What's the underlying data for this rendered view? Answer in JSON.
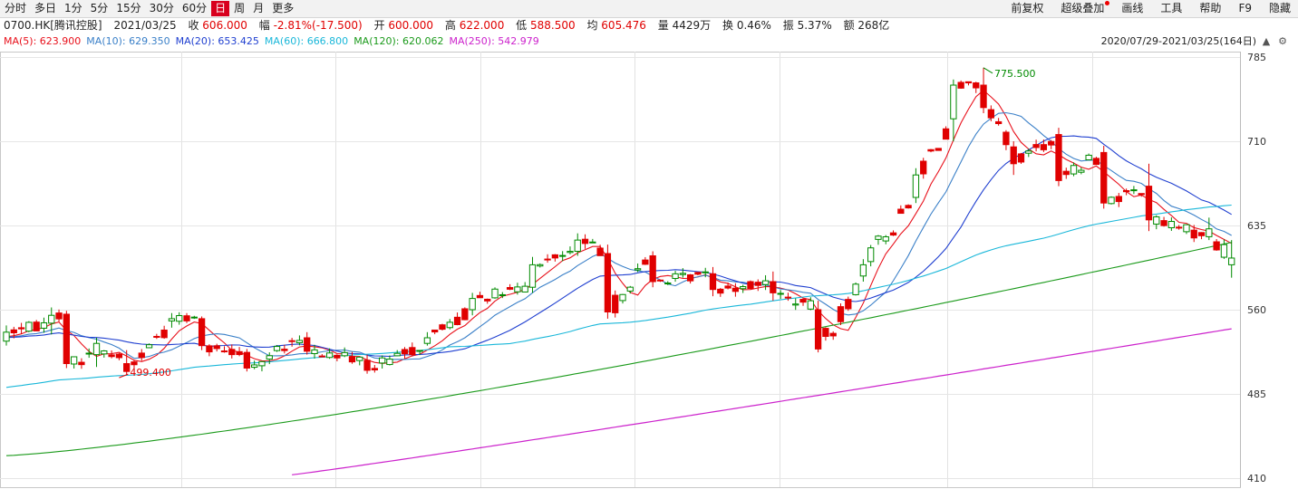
{
  "toolbar": {
    "period_tabs": [
      "分时",
      "多日",
      "1分",
      "5分",
      "15分",
      "30分",
      "60分",
      "日",
      "周",
      "月",
      "更多"
    ],
    "active_period": "日",
    "tools": [
      "前复权",
      "超级叠加",
      "画线",
      "工具",
      "帮助",
      "F9",
      "隐藏"
    ]
  },
  "info": {
    "symbol": "0700.HK[腾讯控股]",
    "date": "2021/03/25",
    "close_label": "收",
    "close": "606.000",
    "change_label": "幅",
    "change": "-2.81%(-17.500)",
    "open_label": "开",
    "open": "600.000",
    "high_label": "高",
    "high": "622.000",
    "low_label": "低",
    "low": "588.500",
    "avg_label": "均",
    "avg": "605.476",
    "volume_label": "量",
    "volume": "4429万",
    "turnover_label": "换",
    "turnover": "0.46%",
    "amplitude_label": "振",
    "amplitude": "5.37%",
    "amount_label": "额",
    "amount": "268亿"
  },
  "ma_legend": [
    {
      "label": "MA(5):",
      "value": "623.900",
      "color": "#e8101b"
    },
    {
      "label": "MA(10):",
      "value": "629.350",
      "color": "#3b80c8"
    },
    {
      "label": "MA(20):",
      "value": "653.425",
      "color": "#1f3fd0"
    },
    {
      "label": "MA(60):",
      "value": "666.800",
      "color": "#19b7d9"
    },
    {
      "label": "MA(120):",
      "value": "620.062",
      "color": "#1b9a1b"
    },
    {
      "label": "MA(250):",
      "value": "542.979",
      "color": "#cc22cc"
    }
  ],
  "range_label": "2020/07/29-2021/03/25(164日)",
  "icons": [
    "zoom-in-icon",
    "zoom-out-icon"
  ],
  "chart_data": {
    "type": "candlestick",
    "y_ticks": [
      410,
      485,
      560,
      635,
      710,
      785
    ],
    "ylim": [
      407,
      788
    ],
    "up_color": "#008a00",
    "down_color": "#e00000",
    "annotations": [
      {
        "text": "499.400",
        "value": 499.4,
        "candle": 15,
        "color": "#e00000"
      },
      {
        "text": "775.500",
        "value": 775.5,
        "candle": 130,
        "color": "#008a00"
      }
    ],
    "ohlc_sampled": [
      {
        "i": 0,
        "o": 532,
        "h": 546,
        "l": 528,
        "c": 540
      },
      {
        "i": 6,
        "o": 548,
        "h": 562,
        "l": 538,
        "c": 555
      },
      {
        "i": 8,
        "o": 556,
        "h": 559,
        "l": 508,
        "c": 512
      },
      {
        "i": 12,
        "o": 520,
        "h": 535,
        "l": 509,
        "c": 530
      },
      {
        "i": 16,
        "o": 512,
        "h": 524,
        "l": 502,
        "c": 505
      },
      {
        "i": 22,
        "o": 550,
        "h": 557,
        "l": 544,
        "c": 552
      },
      {
        "i": 26,
        "o": 552,
        "h": 554,
        "l": 524,
        "c": 528
      },
      {
        "i": 32,
        "o": 522,
        "h": 525,
        "l": 505,
        "c": 508
      },
      {
        "i": 40,
        "o": 535,
        "h": 540,
        "l": 520,
        "c": 523
      },
      {
        "i": 48,
        "o": 515,
        "h": 520,
        "l": 503,
        "c": 506
      },
      {
        "i": 56,
        "o": 530,
        "h": 540,
        "l": 528,
        "c": 535
      },
      {
        "i": 62,
        "o": 560,
        "h": 575,
        "l": 555,
        "c": 570
      },
      {
        "i": 70,
        "o": 580,
        "h": 607,
        "l": 575,
        "c": 600
      },
      {
        "i": 76,
        "o": 612,
        "h": 628,
        "l": 608,
        "c": 622
      },
      {
        "i": 80,
        "o": 610,
        "h": 618,
        "l": 552,
        "c": 558
      },
      {
        "i": 86,
        "o": 608,
        "h": 612,
        "l": 580,
        "c": 585
      },
      {
        "i": 94,
        "o": 592,
        "h": 598,
        "l": 572,
        "c": 578
      },
      {
        "i": 102,
        "o": 585,
        "h": 594,
        "l": 568,
        "c": 575
      },
      {
        "i": 108,
        "o": 560,
        "h": 568,
        "l": 522,
        "c": 525
      },
      {
        "i": 114,
        "o": 590,
        "h": 605,
        "l": 585,
        "c": 600
      },
      {
        "i": 121,
        "o": 660,
        "h": 686,
        "l": 655,
        "c": 680
      },
      {
        "i": 126,
        "o": 730,
        "h": 765,
        "l": 710,
        "c": 760
      },
      {
        "i": 130,
        "o": 760,
        "h": 775.5,
        "l": 735,
        "c": 740
      },
      {
        "i": 134,
        "o": 705,
        "h": 710,
        "l": 680,
        "c": 690
      },
      {
        "i": 140,
        "o": 716,
        "h": 722,
        "l": 670,
        "c": 675
      },
      {
        "i": 146,
        "o": 700,
        "h": 706,
        "l": 650,
        "c": 655
      },
      {
        "i": 152,
        "o": 670,
        "h": 690,
        "l": 630,
        "c": 640
      },
      {
        "i": 160,
        "o": 625,
        "h": 642,
        "l": 622,
        "c": 632
      },
      {
        "i": 163,
        "o": 600,
        "h": 622,
        "l": 588.5,
        "c": 606
      }
    ]
  }
}
